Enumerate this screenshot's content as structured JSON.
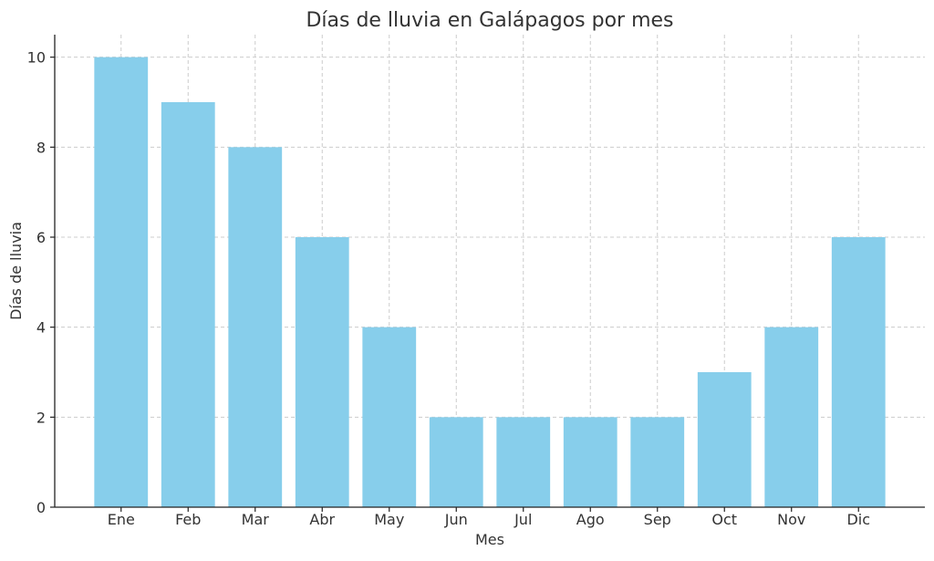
{
  "chart_data": {
    "type": "bar",
    "title": "Días de lluvia en Galápagos por mes",
    "xlabel": "Mes",
    "ylabel": "Días de lluvia",
    "categories": [
      "Ene",
      "Feb",
      "Mar",
      "Abr",
      "May",
      "Jun",
      "Jul",
      "Ago",
      "Sep",
      "Oct",
      "Nov",
      "Dic"
    ],
    "values": [
      10,
      9,
      8,
      6,
      4,
      2,
      2,
      2,
      2,
      3,
      4,
      6
    ],
    "ylim": [
      0,
      10.5
    ],
    "yticks": [
      0,
      2,
      4,
      6,
      8,
      10
    ],
    "grid": true,
    "bar_color": "#87CEEB"
  }
}
